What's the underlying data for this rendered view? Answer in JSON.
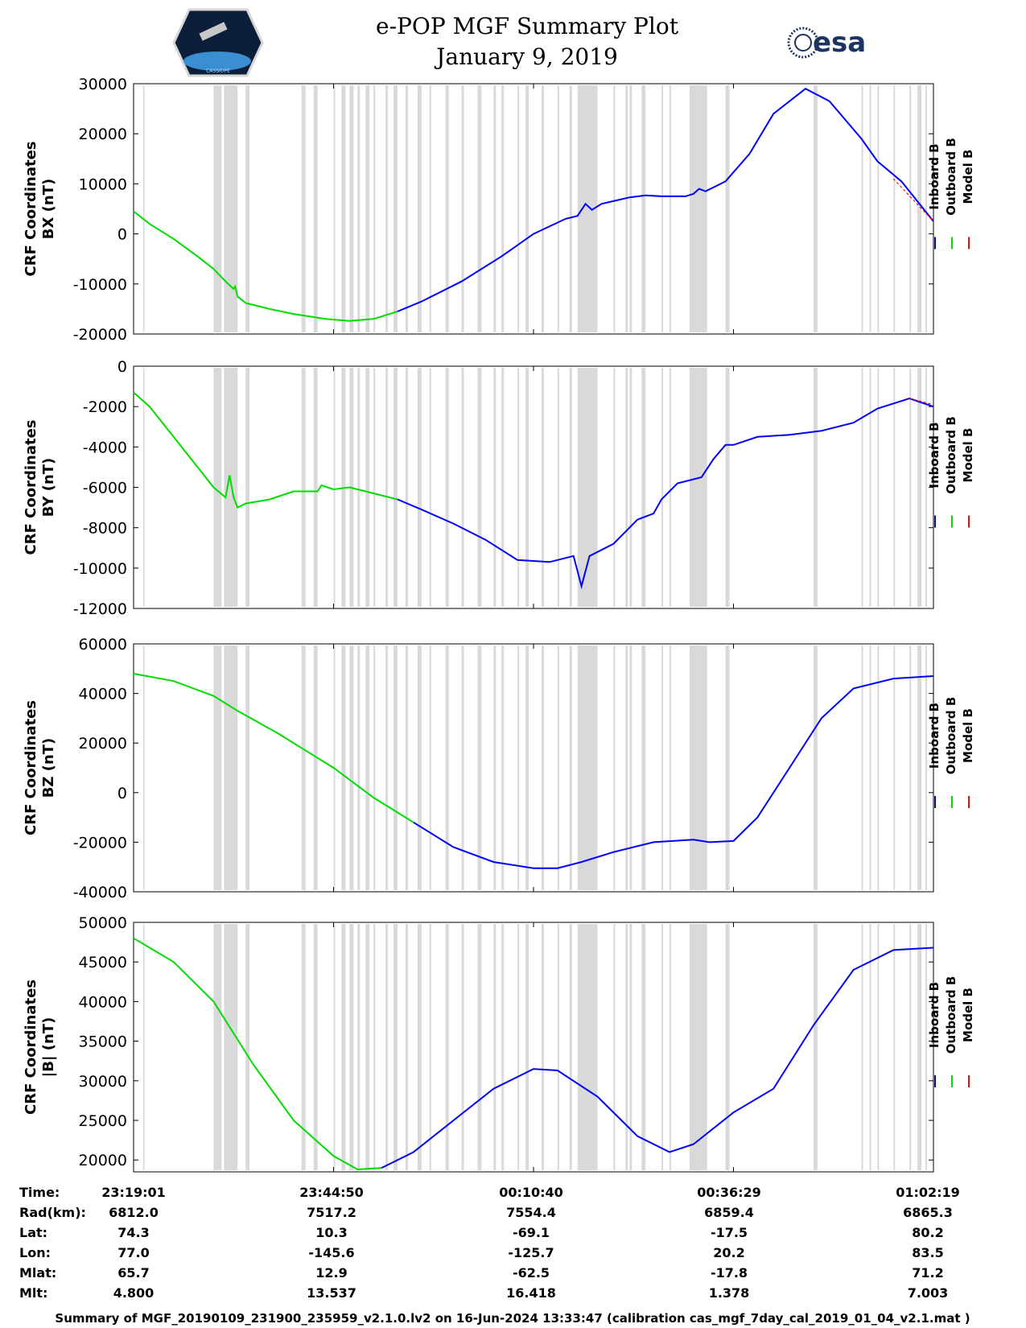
{
  "header": {
    "title": "e-POP MGF Summary Plot",
    "date": "January 9, 2019",
    "esa_logo": "esa",
    "cassiope_logo": "CASSIOPE"
  },
  "legend": [
    "Inboard B",
    "Outboard B",
    "Model B"
  ],
  "colors": {
    "inboard": "#0000ff",
    "outboard": "#00dd00",
    "model": "#ff0000",
    "gap": "#d9d9d9"
  },
  "chart_data": [
    {
      "type": "line",
      "ylabel_line1": "CRF Coordinates",
      "ylabel_line2": "BX (nT)",
      "ylim": [
        -20000,
        30000
      ],
      "yticks": [
        "-20000",
        "-10000",
        "0",
        "10000",
        "20000",
        "30000"
      ],
      "ytick_values": [
        -20000,
        -10000,
        0,
        10000,
        20000,
        30000
      ],
      "outboard": [
        [
          0,
          4500
        ],
        [
          0.02,
          2000
        ],
        [
          0.05,
          -1000
        ],
        [
          0.08,
          -4500
        ],
        [
          0.1,
          -7000
        ],
        [
          0.115,
          -9500
        ],
        [
          0.125,
          -11000
        ],
        [
          0.127,
          -10500
        ],
        [
          0.13,
          -12500
        ],
        [
          0.14,
          -13800
        ],
        [
          0.17,
          -15000
        ],
        [
          0.2,
          -16000
        ],
        [
          0.24,
          -17000
        ],
        [
          0.27,
          -17400
        ],
        [
          0.3,
          -17000
        ],
        [
          0.33,
          -15500
        ]
      ],
      "inboard": [
        [
          0.33,
          -15500
        ],
        [
          0.36,
          -13500
        ],
        [
          0.41,
          -9500
        ],
        [
          0.46,
          -4500
        ],
        [
          0.5,
          0
        ],
        [
          0.54,
          3000
        ],
        [
          0.555,
          3600
        ],
        [
          0.565,
          6000
        ],
        [
          0.573,
          4800
        ],
        [
          0.585,
          6000
        ],
        [
          0.62,
          7300
        ],
        [
          0.64,
          7700
        ],
        [
          0.66,
          7500
        ],
        [
          0.69,
          7500
        ],
        [
          0.7,
          8000
        ],
        [
          0.707,
          9000
        ],
        [
          0.715,
          8500
        ],
        [
          0.74,
          10500
        ],
        [
          0.77,
          16000
        ],
        [
          0.8,
          24000
        ],
        [
          0.84,
          29000
        ],
        [
          0.87,
          26500
        ],
        [
          0.91,
          19000
        ],
        [
          0.93,
          14500
        ],
        [
          0.96,
          10500
        ],
        [
          1.0,
          2500
        ]
      ],
      "model": [
        [
          0.95,
          11000
        ],
        [
          1.0,
          2500
        ]
      ]
    },
    {
      "type": "line",
      "ylabel_line1": "CRF Coordinates",
      "ylabel_line2": "BY (nT)",
      "ylim": [
        -12000,
        0
      ],
      "yticks": [
        "-12000",
        "-10000",
        "-8000",
        "-6000",
        "-4000",
        "-2000",
        "0"
      ],
      "ytick_values": [
        -12000,
        -10000,
        -8000,
        -6000,
        -4000,
        -2000,
        0
      ],
      "outboard": [
        [
          0,
          -1300
        ],
        [
          0.02,
          -2000
        ],
        [
          0.05,
          -3500
        ],
        [
          0.08,
          -5000
        ],
        [
          0.1,
          -6000
        ],
        [
          0.115,
          -6500
        ],
        [
          0.12,
          -5400
        ],
        [
          0.125,
          -6500
        ],
        [
          0.13,
          -7000
        ],
        [
          0.14,
          -6800
        ],
        [
          0.17,
          -6600
        ],
        [
          0.2,
          -6200
        ],
        [
          0.23,
          -6200
        ],
        [
          0.235,
          -5900
        ],
        [
          0.25,
          -6100
        ],
        [
          0.27,
          -6000
        ],
        [
          0.3,
          -6300
        ],
        [
          0.33,
          -6600
        ]
      ],
      "inboard": [
        [
          0.33,
          -6600
        ],
        [
          0.36,
          -7100
        ],
        [
          0.4,
          -7800
        ],
        [
          0.44,
          -8600
        ],
        [
          0.48,
          -9600
        ],
        [
          0.52,
          -9700
        ],
        [
          0.55,
          -9400
        ],
        [
          0.56,
          -10900
        ],
        [
          0.57,
          -9400
        ],
        [
          0.6,
          -8800
        ],
        [
          0.63,
          -7600
        ],
        [
          0.65,
          -7300
        ],
        [
          0.66,
          -6600
        ],
        [
          0.68,
          -5800
        ],
        [
          0.71,
          -5500
        ],
        [
          0.725,
          -4600
        ],
        [
          0.74,
          -3900
        ],
        [
          0.75,
          -3900
        ],
        [
          0.78,
          -3500
        ],
        [
          0.82,
          -3400
        ],
        [
          0.86,
          -3200
        ],
        [
          0.9,
          -2800
        ],
        [
          0.93,
          -2100
        ],
        [
          0.97,
          -1600
        ],
        [
          1.0,
          -2000
        ]
      ],
      "model": [
        [
          0.97,
          -1600
        ],
        [
          1.0,
          -1900
        ]
      ]
    },
    {
      "type": "line",
      "ylabel_line1": "CRF Coordinates",
      "ylabel_line2": "BZ (nT)",
      "ylim": [
        -40000,
        60000
      ],
      "yticks": [
        "-40000",
        "-20000",
        "0",
        "20000",
        "40000",
        "60000"
      ],
      "ytick_values": [
        -40000,
        -20000,
        0,
        20000,
        40000,
        60000
      ],
      "outboard": [
        [
          0,
          48000
        ],
        [
          0.05,
          45000
        ],
        [
          0.1,
          39000
        ],
        [
          0.13,
          33000
        ],
        [
          0.18,
          24000
        ],
        [
          0.25,
          10000
        ],
        [
          0.3,
          -2000
        ],
        [
          0.35,
          -12000
        ]
      ],
      "inboard": [
        [
          0.35,
          -12000
        ],
        [
          0.4,
          -22000
        ],
        [
          0.45,
          -28000
        ],
        [
          0.5,
          -30500
        ],
        [
          0.53,
          -30500
        ],
        [
          0.56,
          -28000
        ],
        [
          0.6,
          -24000
        ],
        [
          0.65,
          -20000
        ],
        [
          0.7,
          -19000
        ],
        [
          0.72,
          -20000
        ],
        [
          0.75,
          -19500
        ],
        [
          0.78,
          -10000
        ],
        [
          0.82,
          10000
        ],
        [
          0.86,
          30000
        ],
        [
          0.9,
          42000
        ],
        [
          0.95,
          46000
        ],
        [
          1.0,
          47000
        ]
      ],
      "model": []
    },
    {
      "type": "line",
      "ylabel_line1": "CRF Coordinates",
      "ylabel_line2": "|B| (nT)",
      "ylim": [
        18500,
        50000
      ],
      "yticks": [
        "20000",
        "25000",
        "30000",
        "35000",
        "40000",
        "45000",
        "50000"
      ],
      "ytick_values": [
        20000,
        25000,
        30000,
        35000,
        40000,
        45000,
        50000
      ],
      "outboard": [
        [
          0,
          48000
        ],
        [
          0.05,
          45000
        ],
        [
          0.1,
          40000
        ],
        [
          0.15,
          32000
        ],
        [
          0.2,
          25000
        ],
        [
          0.25,
          20500
        ],
        [
          0.28,
          18800
        ],
        [
          0.31,
          19000
        ]
      ],
      "inboard": [
        [
          0.31,
          19000
        ],
        [
          0.35,
          21000
        ],
        [
          0.4,
          25000
        ],
        [
          0.45,
          29000
        ],
        [
          0.5,
          31500
        ],
        [
          0.53,
          31300
        ],
        [
          0.58,
          28000
        ],
        [
          0.63,
          23000
        ],
        [
          0.67,
          21000
        ],
        [
          0.7,
          22000
        ],
        [
          0.75,
          26000
        ],
        [
          0.8,
          29000
        ],
        [
          0.85,
          37000
        ],
        [
          0.9,
          44000
        ],
        [
          0.95,
          46500
        ],
        [
          1.0,
          46800
        ]
      ],
      "model": []
    }
  ],
  "gap_bands": [
    [
      0.012,
      0.013
    ],
    [
      0.1,
      0.11
    ],
    [
      0.113,
      0.13
    ],
    [
      0.14,
      0.145
    ],
    [
      0.21,
      0.215
    ],
    [
      0.225,
      0.23
    ],
    [
      0.25,
      0.252
    ],
    [
      0.26,
      0.265
    ],
    [
      0.27,
      0.275
    ],
    [
      0.28,
      0.283
    ],
    [
      0.29,
      0.295
    ],
    [
      0.3,
      0.302
    ],
    [
      0.315,
      0.318
    ],
    [
      0.325,
      0.33
    ],
    [
      0.34,
      0.343
    ],
    [
      0.355,
      0.36
    ],
    [
      0.37,
      0.372
    ],
    [
      0.39,
      0.394
    ],
    [
      0.41,
      0.413
    ],
    [
      0.43,
      0.435
    ],
    [
      0.45,
      0.453
    ],
    [
      0.46,
      0.463
    ],
    [
      0.48,
      0.482
    ],
    [
      0.49,
      0.494
    ],
    [
      0.51,
      0.513
    ],
    [
      0.53,
      0.532
    ],
    [
      0.545,
      0.548
    ],
    [
      0.555,
      0.58
    ],
    [
      0.6,
      0.602
    ],
    [
      0.615,
      0.618
    ],
    [
      0.62,
      0.623
    ],
    [
      0.635,
      0.64
    ],
    [
      0.66,
      0.662
    ],
    [
      0.67,
      0.672
    ],
    [
      0.695,
      0.717
    ],
    [
      0.74,
      0.745
    ],
    [
      0.85,
      0.855
    ],
    [
      0.91,
      0.912
    ],
    [
      0.92,
      0.922
    ],
    [
      0.93,
      0.932
    ],
    [
      0.95,
      0.952
    ],
    [
      0.97,
      0.972
    ],
    [
      0.98,
      0.985
    ],
    [
      0.99,
      0.992
    ]
  ],
  "x_ticks": [
    0,
    0.25,
    0.5,
    0.75,
    1.0
  ],
  "ephemeris": {
    "labels": [
      "Time:",
      "Rad(km):",
      "Lat:",
      "Lon:",
      "Mlat:",
      "Mlt:"
    ],
    "columns": [
      [
        "23:19:01",
        "6812.0",
        "74.3",
        "77.0",
        "65.7",
        "4.800"
      ],
      [
        "23:44:50",
        "7517.2",
        "10.3",
        "-145.6",
        "12.9",
        "13.537"
      ],
      [
        "00:10:40",
        "7554.4",
        "-69.1",
        "-125.7",
        "-62.5",
        "16.418"
      ],
      [
        "00:36:29",
        "6859.4",
        "-17.5",
        "20.2",
        "-17.8",
        "1.378"
      ],
      [
        "01:02:19",
        "6865.3",
        "80.2",
        "83.5",
        "71.2",
        "7.003"
      ]
    ]
  },
  "footer": "Summary of MGF_20190109_231900_235959_v2.1.0.lv2 on 16-Jun-2024 13:33:47 (calibration cas_mgf_7day_cal_2019_01_04_v2.1.mat )"
}
